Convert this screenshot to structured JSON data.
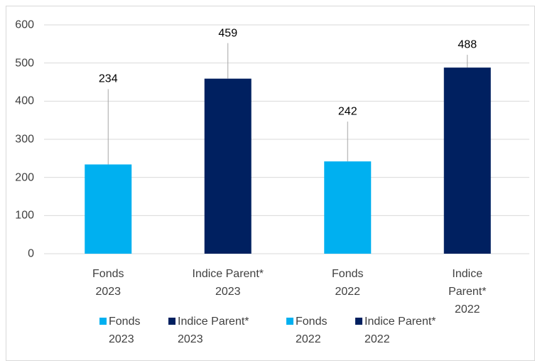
{
  "chart_data": {
    "type": "bar",
    "categories": [
      "Fonds\n2023",
      "Indice Parent*\n2023",
      "Fonds\n2022",
      "Indice Parent*\n2022"
    ],
    "values": [
      234,
      459,
      242,
      488
    ],
    "colors": [
      "#00b0f0",
      "#002060",
      "#00b0f0",
      "#002060"
    ],
    "ylim": [
      0,
      600
    ],
    "yticks": [
      0,
      100,
      200,
      300,
      400,
      500,
      600
    ],
    "grid": true,
    "legend": "bottom"
  }
}
